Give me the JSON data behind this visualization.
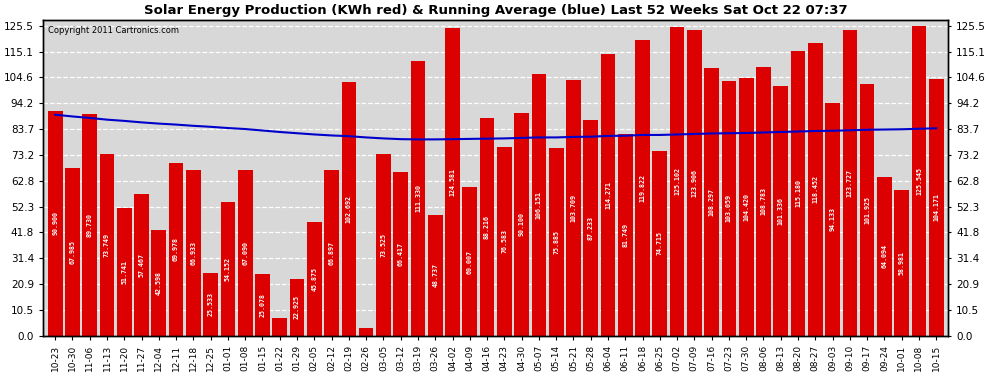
{
  "title": "Solar Energy Production (KWh red) & Running Average (blue) Last 52 Weeks Sat Oct 22 07:37",
  "copyright": "Copyright 2011 Cartronics.com",
  "bar_color": "#dd0000",
  "line_color": "#0000cc",
  "background_color": "#ffffff",
  "plot_bg_color": "#d8d8d8",
  "grid_color": "#ffffff",
  "yticks": [
    0.0,
    10.5,
    20.9,
    31.4,
    41.8,
    52.3,
    62.8,
    73.2,
    83.7,
    94.2,
    104.6,
    115.1,
    125.5
  ],
  "ylim": [
    0,
    128
  ],
  "categories": [
    "10-23",
    "10-30",
    "11-06",
    "11-13",
    "11-20",
    "11-27",
    "12-04",
    "12-11",
    "12-18",
    "12-25",
    "01-01",
    "01-08",
    "01-15",
    "01-22",
    "01-29",
    "02-05",
    "02-12",
    "02-19",
    "02-26",
    "03-05",
    "03-12",
    "03-19",
    "03-26",
    "04-02",
    "04-09",
    "04-16",
    "04-23",
    "04-30",
    "05-07",
    "05-14",
    "05-21",
    "05-28",
    "06-04",
    "06-11",
    "06-18",
    "06-25",
    "07-02",
    "07-09",
    "07-16",
    "07-23",
    "07-30",
    "08-06",
    "08-13",
    "08-20",
    "08-27",
    "09-03",
    "09-10",
    "09-17",
    "09-24",
    "10-01",
    "10-08",
    "10-15"
  ],
  "values": [
    90.9,
    67.985,
    89.73,
    73.749,
    51.741,
    57.467,
    42.598,
    69.978,
    66.933,
    25.533,
    54.152,
    67.09,
    25.078,
    7.009,
    22.925,
    45.875,
    66.897,
    102.692,
    3.152,
    73.525,
    66.417,
    111.33,
    48.737,
    124.581,
    60.007,
    88.216,
    76.583,
    90.1,
    106.151,
    75.885,
    103.709,
    87.233,
    114.271,
    81.749,
    119.822,
    74.715,
    125.102,
    123.906,
    108.297,
    103.059,
    104.42,
    108.783,
    101.336,
    115.18,
    118.452,
    94.133,
    123.727,
    101.925,
    64.094,
    58.981,
    125.545,
    104.171
  ],
  "running_avg": [
    89.5,
    88.8,
    88.2,
    87.5,
    87.0,
    86.4,
    85.9,
    85.5,
    85.0,
    84.6,
    84.1,
    83.7,
    83.1,
    82.5,
    82.0,
    81.5,
    81.1,
    80.8,
    80.3,
    79.9,
    79.6,
    79.5,
    79.5,
    79.6,
    79.7,
    79.8,
    79.9,
    80.1,
    80.3,
    80.3,
    80.5,
    80.6,
    80.9,
    81.0,
    81.3,
    81.3,
    81.5,
    81.7,
    81.9,
    82.0,
    82.1,
    82.3,
    82.5,
    82.7,
    82.9,
    83.0,
    83.2,
    83.4,
    83.5,
    83.6,
    83.8,
    84.0
  ]
}
